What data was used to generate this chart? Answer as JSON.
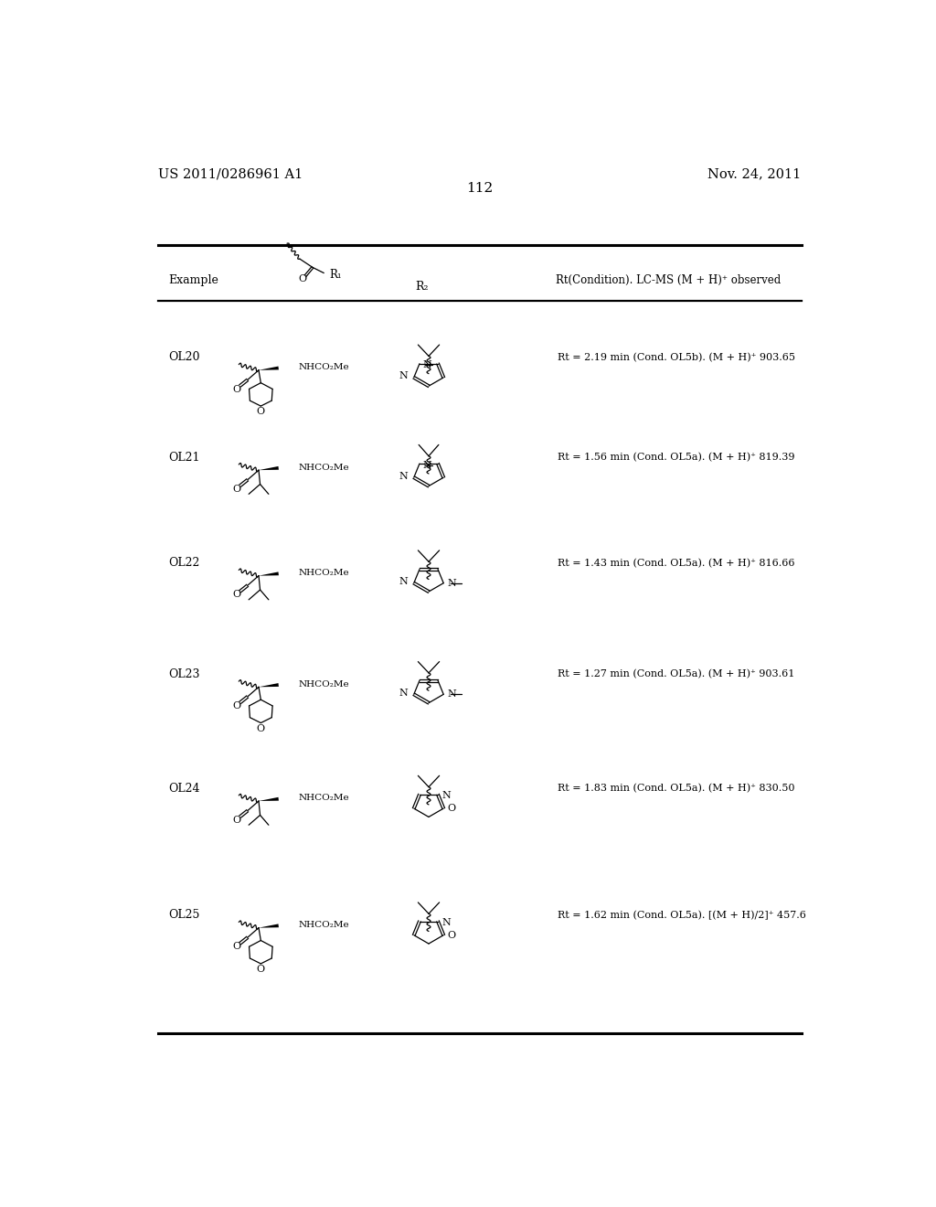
{
  "page_number": "112",
  "patent_number": "US 2011/0286961 A1",
  "patent_date": "Nov. 24, 2011",
  "background_color": "#ffffff",
  "text_color": "#000000",
  "col_header_example": "Example",
  "col_header_r2": "R₂",
  "col_header_rt": "Rt(Condition). LC-MS (M + H)⁺ observed",
  "examples": [
    {
      "id": "OL20",
      "rt_text": "Rt = 2.19 min (Cond. OL5b). (M + H)⁺ 903.65",
      "r1_type": "thp",
      "r2_type": "pyrazole_gd"
    },
    {
      "id": "OL21",
      "rt_text": "Rt = 1.56 min (Cond. OL5a). (M + H)⁺ 819.39",
      "r1_type": "isobutyl",
      "r2_type": "pyrazole_methyl"
    },
    {
      "id": "OL22",
      "rt_text": "Rt = 1.43 min (Cond. OL5a). (M + H)⁺ 816.66",
      "r1_type": "isobutyl",
      "r2_type": "imidazole_methyl_gd"
    },
    {
      "id": "OL23",
      "rt_text": "Rt = 1.27 min (Cond. OL5a). (M + H)⁺ 903.61",
      "r1_type": "thp",
      "r2_type": "imidazole_methyl_gd"
    },
    {
      "id": "OL24",
      "rt_text": "Rt = 1.83 min (Cond. OL5a). (M + H)⁺ 830.50",
      "r1_type": "isobutyl",
      "r2_type": "isoxazole_gd"
    },
    {
      "id": "OL25",
      "rt_text": "Rt = 1.62 min (Cond. OL5a). [(M + H)/2]⁺ 457.6",
      "r1_type": "thp",
      "r2_type": "isoxazole_gd"
    }
  ]
}
